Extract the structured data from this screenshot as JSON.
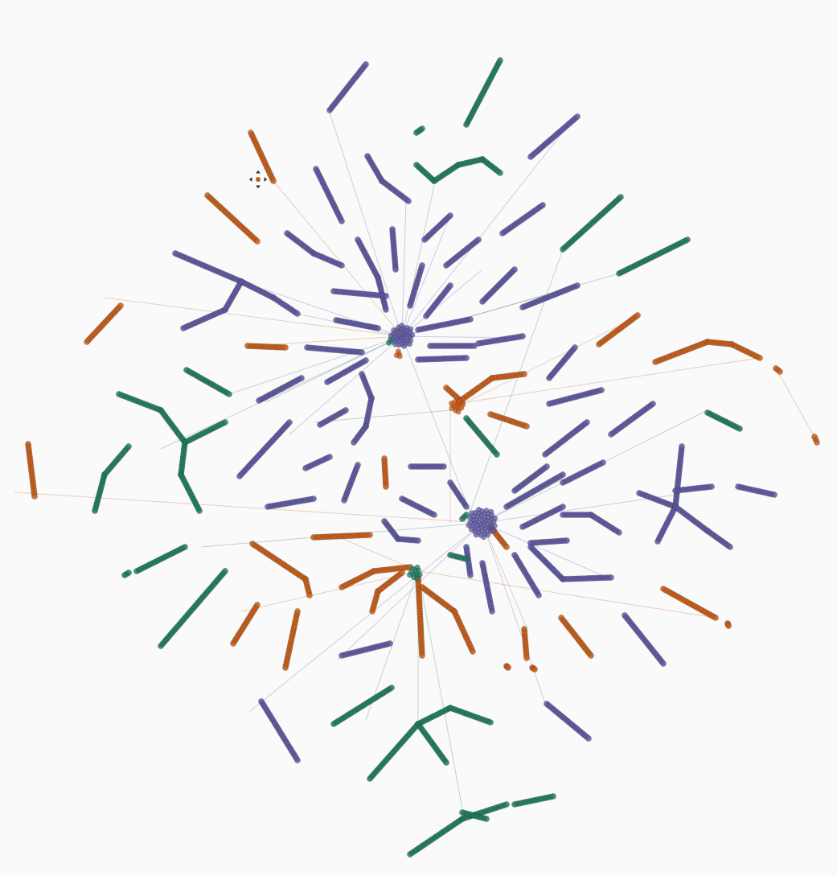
{
  "view": {
    "background": "#fafafa",
    "cursor": "move-cursor-icon"
  },
  "legend_colors": {
    "purple": "#5b55a0",
    "green": "#1d7a5f",
    "orange": "#c65a14"
  }
}
